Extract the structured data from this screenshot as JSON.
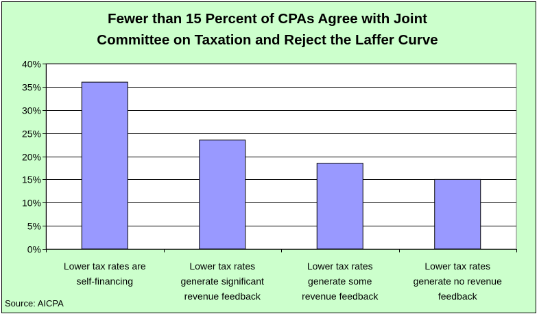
{
  "title_lines": [
    "Fewer than 15 Percent of CPAs Agree with Joint",
    "Committee on Taxation and Reject the Laffer Curve"
  ],
  "source": "Source: AICPA",
  "colors": {
    "background": "#ccffcc",
    "plot_area": "#ffffff",
    "bar_fill": "#9999ff",
    "bar_stroke": "#000000",
    "gridline": "#000000"
  },
  "chart_data": {
    "type": "bar",
    "title": "Fewer than 15 Percent of CPAs Agree with Joint Committee on Taxation and Reject the Laffer Curve",
    "categories": [
      [
        "Lower tax rates are",
        "self-financing"
      ],
      [
        "Lower tax rates",
        "generate significant",
        "revenue feedback"
      ],
      [
        "Lower tax rates",
        "generate some",
        "revenue feedback"
      ],
      [
        "Lower tax rates",
        "generate no revenue",
        "feedback"
      ]
    ],
    "values": [
      36,
      23.5,
      18.5,
      15
    ],
    "ylim": [
      0,
      40
    ],
    "yticks": [
      0,
      5,
      10,
      15,
      20,
      25,
      30,
      35,
      40
    ],
    "ytick_labels": [
      "0%",
      "5%",
      "10%",
      "15%",
      "20%",
      "25%",
      "30%",
      "35%",
      "40%"
    ],
    "grid": true,
    "legend": "none"
  }
}
